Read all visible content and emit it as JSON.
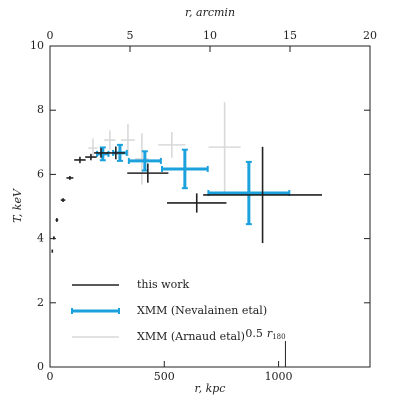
{
  "chart_data": {
    "type": "errorbar",
    "xlabel": "r, kpc",
    "ylabel": "T, keV",
    "x2label": "r, arcmin",
    "xlim": [
      0,
      1400
    ],
    "xticks": [
      0,
      500,
      1000
    ],
    "x2lim": [
      0,
      20
    ],
    "x2ticks": [
      0,
      5,
      10,
      15,
      20
    ],
    "ylim": [
      0,
      10
    ],
    "yticks": [
      0,
      2,
      4,
      6,
      8,
      10
    ],
    "legend": "lower left",
    "annotation": {
      "text": "0.5",
      "var": "r",
      "sub": "180",
      "x": 1030
    },
    "series": [
      {
        "name": "XMM (Arnaud etal)",
        "color": "#d9d9d9",
        "caps": false,
        "x": [
          188,
          262,
          341,
          402,
          533,
          764
        ],
        "xerr": [
          20,
          25,
          30,
          30,
          60,
          70
        ],
        "values": [
          6.82,
          7.07,
          7.07,
          6.48,
          6.92,
          6.85
        ],
        "yerr": [
          0.3,
          0.3,
          0.5,
          0.8,
          0.4,
          1.4
        ]
      },
      {
        "name": "XMM (Nevalainen etal)",
        "color": "#1ba1dc",
        "caps": true,
        "x": [
          231,
          306,
          415,
          590,
          870
        ],
        "xerr": [
          25,
          30,
          70,
          100,
          177
        ],
        "values": [
          6.64,
          6.67,
          6.42,
          6.17,
          5.42
        ],
        "yerr": [
          0.2,
          0.25,
          0.3,
          0.6,
          0.97
        ]
      },
      {
        "name": "this work",
        "color": "#222222",
        "caps": false,
        "x": [
          10,
          17,
          30,
          57,
          87,
          131,
          179,
          223,
          288,
          428,
          642,
          930
        ],
        "xerr": [
          3,
          4,
          6,
          10,
          15,
          25,
          25,
          30,
          40,
          90,
          130,
          260
        ],
        "values": [
          3.61,
          4.02,
          4.58,
          5.2,
          5.89,
          6.45,
          6.54,
          6.67,
          6.67,
          6.04,
          5.11,
          5.36
        ],
        "yerr": [
          0.05,
          0.05,
          0.06,
          0.06,
          0.06,
          0.1,
          0.1,
          0.15,
          0.2,
          0.3,
          0.3,
          1.5
        ]
      }
    ]
  }
}
